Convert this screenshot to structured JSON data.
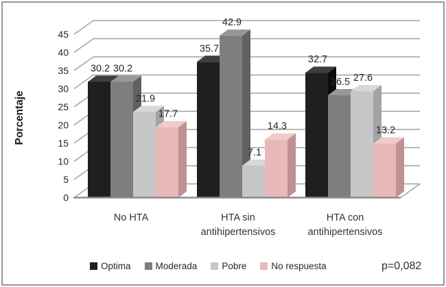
{
  "chart_data": {
    "type": "bar",
    "style": "3d-clustered-column",
    "title": "",
    "xlabel": "",
    "ylabel": "Porcentaje",
    "categories": [
      "No HTA",
      "HTA sin antihipertensivos",
      "HTA con antihipertensivos"
    ],
    "category_lines": [
      [
        "No HTA"
      ],
      [
        "HTA sin",
        "antihipertensivos"
      ],
      [
        "HTA con",
        "antihipertensivos"
      ]
    ],
    "series": [
      {
        "name": "Optima",
        "values": [
          30.2,
          35.7,
          32.7
        ],
        "color": "#211e1f",
        "top_color": "#403d3e",
        "side_color": "#0d0c0c"
      },
      {
        "name": "Moderada",
        "values": [
          30.2,
          42.9,
          26.5
        ],
        "color": "#7f7d7f",
        "top_color": "#999799",
        "side_color": "#616062"
      },
      {
        "name": "Pobre",
        "values": [
          21.9,
          7.1,
          27.6
        ],
        "color": "#c7c6c8",
        "top_color": "#d8d7d9",
        "side_color": "#a3a2a4"
      },
      {
        "name": "No respuesta",
        "values": [
          17.7,
          14.3,
          13.2
        ],
        "color": "#e9b9ba",
        "top_color": "#f1caca",
        "side_color": "#bf9193"
      }
    ],
    "ylim": [
      0,
      45
    ],
    "yticks": [
      0,
      5,
      10,
      15,
      20,
      25,
      30,
      35,
      40,
      45
    ],
    "grid": true,
    "legend_position": "bottom",
    "annotation": "p=0,082",
    "gridline_color": "#a0a0a0",
    "baseline_color": "#8a8a8a",
    "text_color": "#262626",
    "frame_border_color": "#979797"
  }
}
